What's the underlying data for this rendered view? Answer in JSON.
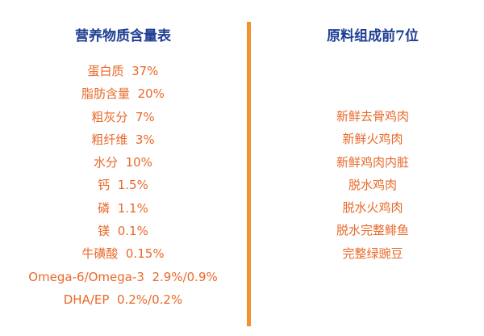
{
  "nutrition": {
    "title": "营养物质含量表",
    "items": [
      "蛋白质  37%",
      "脂肪含量  20%",
      "粗灰分  7%",
      "粗纤维  3%",
      "水分  10%",
      "钙  1.5%",
      "磷  1.1%",
      "镁  0.1%",
      "牛磺酸  0.15%",
      "Omega-6/Omega-3  2.9%/0.9%",
      "DHA/EP  0.2%/0.2%"
    ]
  },
  "ingredients": {
    "title": "原料组成前7位",
    "items": [
      "新鲜去骨鸡肉",
      "新鲜火鸡肉",
      "新鲜鸡肉内脏",
      "脱水鸡肉",
      "脱水火鸡肉",
      "脱水完整鲱鱼",
      "完整绿豌豆"
    ]
  },
  "colors": {
    "title": "#1f3e94",
    "text": "#e8692a",
    "divider": "#f0922e"
  }
}
